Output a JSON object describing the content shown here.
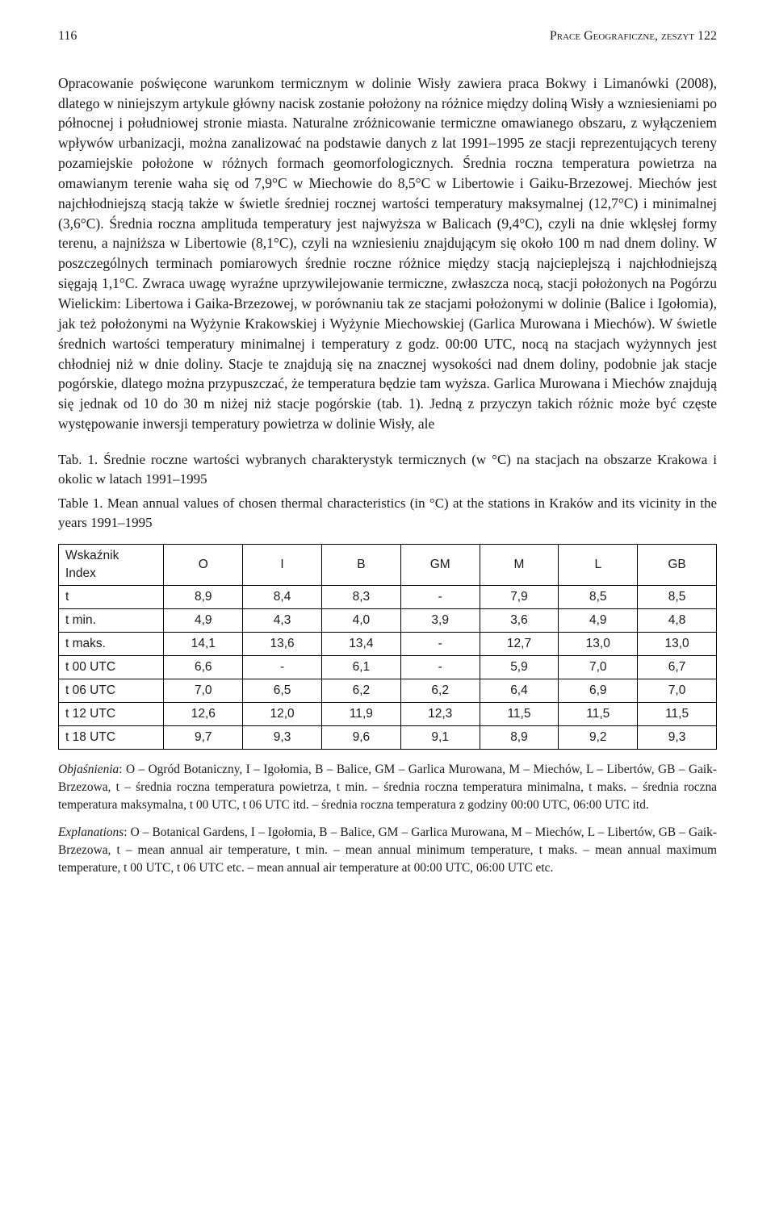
{
  "header": {
    "page_number": "116",
    "journal": "Prace Geograficzne, zeszyt 122"
  },
  "body": {
    "paragraph": "Opracowanie poświęcone warunkom termicznym w dolinie Wisły zawiera praca Bokwy i Limanówki (2008), dlatego w niniejszym artykule główny nacisk zostanie położony na różnice między doliną Wisły a wzniesieniami po północnej i południowej stronie miasta. Naturalne zróżnicowanie termiczne omawianego obszaru, z wyłączeniem wpływów urbanizacji, można zanalizować na podstawie danych z lat 1991–1995 ze stacji reprezentujących tereny pozamiejskie położone w różnych formach geomorfologicznych. Średnia roczna temperatura powietrza na omawianym terenie waha się od 7,9°C w Miechowie do 8,5°C w Libertowie i Gaiku-Brzezowej. Miechów jest najchłodniejszą stacją także w świetle średniej rocznej wartości temperatury maksymalnej (12,7°C) i minimalnej (3,6°C). Średnia roczna amplituda temperatury jest najwyższa w Balicach (9,4°C), czyli na dnie wklęsłej formy terenu, a najniższa w Libertowie (8,1°C), czyli na wzniesieniu znajdującym się około 100 m nad dnem doliny. W poszczególnych terminach pomiarowych średnie roczne różnice między stacją najcieplejszą i najchłodniejszą sięgają 1,1°C. Zwraca uwagę wyraźne uprzywilejowanie termiczne, zwłaszcza nocą, stacji położonych na Pogórzu Wielickim: Libertowa i Gaika-Brzezowej, w porównaniu tak ze stacjami położonymi w dolinie (Balice i Igołomia), jak też położonymi na Wyżynie Krakowskiej i Wyżynie Miechowskiej (Garlica Murowana i Miechów). W świetle średnich wartości temperatury minimalnej i temperatury z godz. 00:00 UTC, nocą na stacjach wyżynnych jest chłodniej niż w dnie doliny. Stacje te znajdują się na znacznej wysokości nad dnem doliny, podobnie jak stacje pogórskie, dlatego można przypuszczać, że temperatura będzie tam wyższa. Garlica Murowana i Miechów znajdują się jednak od 10 do 30 m niżej niż stacje pogórskie (tab. 1). Jedną z przyczyn takich różnic może być częste występowanie inwersji temperatury powietrza w dolinie Wisły, ale"
  },
  "table": {
    "type": "table",
    "caption_pl": "Tab. 1. Średnie roczne wartości wybranych charakterystyk termicznych (w °C) na stacjach na obszarze Krakowa i okolic w latach 1991–1995",
    "caption_en": "Table 1. Mean annual values of chosen thermal characteristics (in °C) at the stations in Kraków and its vicinity in the years 1991–1995",
    "header_label_line1": "Wskaźnik",
    "header_label_line2": "Index",
    "columns": [
      "O",
      "I",
      "B",
      "GM",
      "M",
      "L",
      "GB"
    ],
    "rows": [
      {
        "label": "t",
        "cells": [
          "8,9",
          "8,4",
          "8,3",
          "-",
          "7,9",
          "8,5",
          "8,5"
        ]
      },
      {
        "label": "t min.",
        "cells": [
          "4,9",
          "4,3",
          "4,0",
          "3,9",
          "3,6",
          "4,9",
          "4,8"
        ]
      },
      {
        "label": "t maks.",
        "cells": [
          "14,1",
          "13,6",
          "13,4",
          "-",
          "12,7",
          "13,0",
          "13,0"
        ]
      },
      {
        "label": "t 00 UTC",
        "cells": [
          "6,6",
          "-",
          "6,1",
          "-",
          "5,9",
          "7,0",
          "6,7"
        ]
      },
      {
        "label": "t 06 UTC",
        "cells": [
          "7,0",
          "6,5",
          "6,2",
          "6,2",
          "6,4",
          "6,9",
          "7,0"
        ]
      },
      {
        "label": "t 12 UTC",
        "cells": [
          "12,6",
          "12,0",
          "11,9",
          "12,3",
          "11,5",
          "11,5",
          "11,5"
        ]
      },
      {
        "label": "t 18 UTC",
        "cells": [
          "9,7",
          "9,3",
          "9,6",
          "9,1",
          "8,9",
          "9,2",
          "9,3"
        ]
      }
    ],
    "border_color": "#000000",
    "background_color": "#ffffff",
    "font_family": "Arial",
    "font_size_pt": 11
  },
  "footnote_pl": {
    "lead": "Objaśnienia",
    "text": ": O – Ogród Botaniczny, I – Igołomia, B – Balice, GM – Garlica Murowana, M – Miechów, L – Libertów, GB – Gaik-Brzezowa, t – średnia roczna temperatura powietrza, t min. – średnia roczna temperatura minimalna, t maks. – średnia roczna temperatura maksymalna, t 00 UTC, t 06 UTC itd. – średnia roczna temperatura z godziny 00:00 UTC, 06:00 UTC itd."
  },
  "footnote_en": {
    "lead": "Explanations",
    "text": ": O – Botanical Gardens, I – Igołomia, B – Balice, GM – Garlica Murowana, M – Miechów, L – Libertów, GB – Gaik-Brzezowa, t – mean annual air temperature, t min. – mean annual minimum temperature, t maks. – mean annual maximum temperature, t 00 UTC, t 06 UTC etc. – mean annual air temperature at 00:00 UTC, 06:00 UTC etc."
  }
}
